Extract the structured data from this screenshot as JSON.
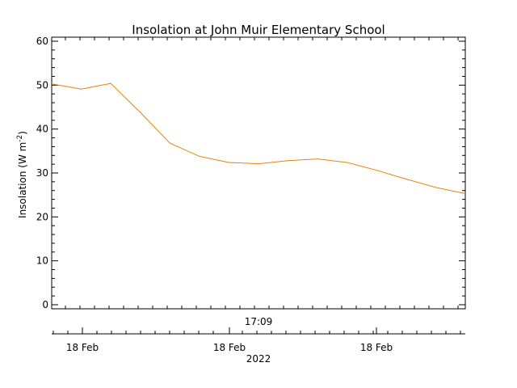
{
  "chart_data": {
    "type": "line",
    "title": "Insolation at John Muir Elementary School",
    "ylabel_main": "Insolation (W m",
    "ylabel_sup": "-2",
    "ylabel_close": ")",
    "ylim": [
      0,
      60
    ],
    "yticks": [
      0,
      10,
      20,
      30,
      40,
      50,
      60
    ],
    "ytick_labels": [
      "0",
      "10",
      "20",
      "30",
      "40",
      "50",
      "60"
    ],
    "time_axis_label": "17:09",
    "xtick_labels": [
      "18 Feb",
      "18 Feb",
      "18 Feb"
    ],
    "year_label": "2022",
    "line_color": "#e8820c",
    "grid": false,
    "series": [
      {
        "values": [
          50.3,
          49.1,
          50.4,
          43.8,
          36.8,
          33.8,
          32.4,
          32.1,
          32.8,
          33.2,
          32.4,
          30.6,
          28.6,
          26.7,
          25.3
        ]
      }
    ]
  }
}
